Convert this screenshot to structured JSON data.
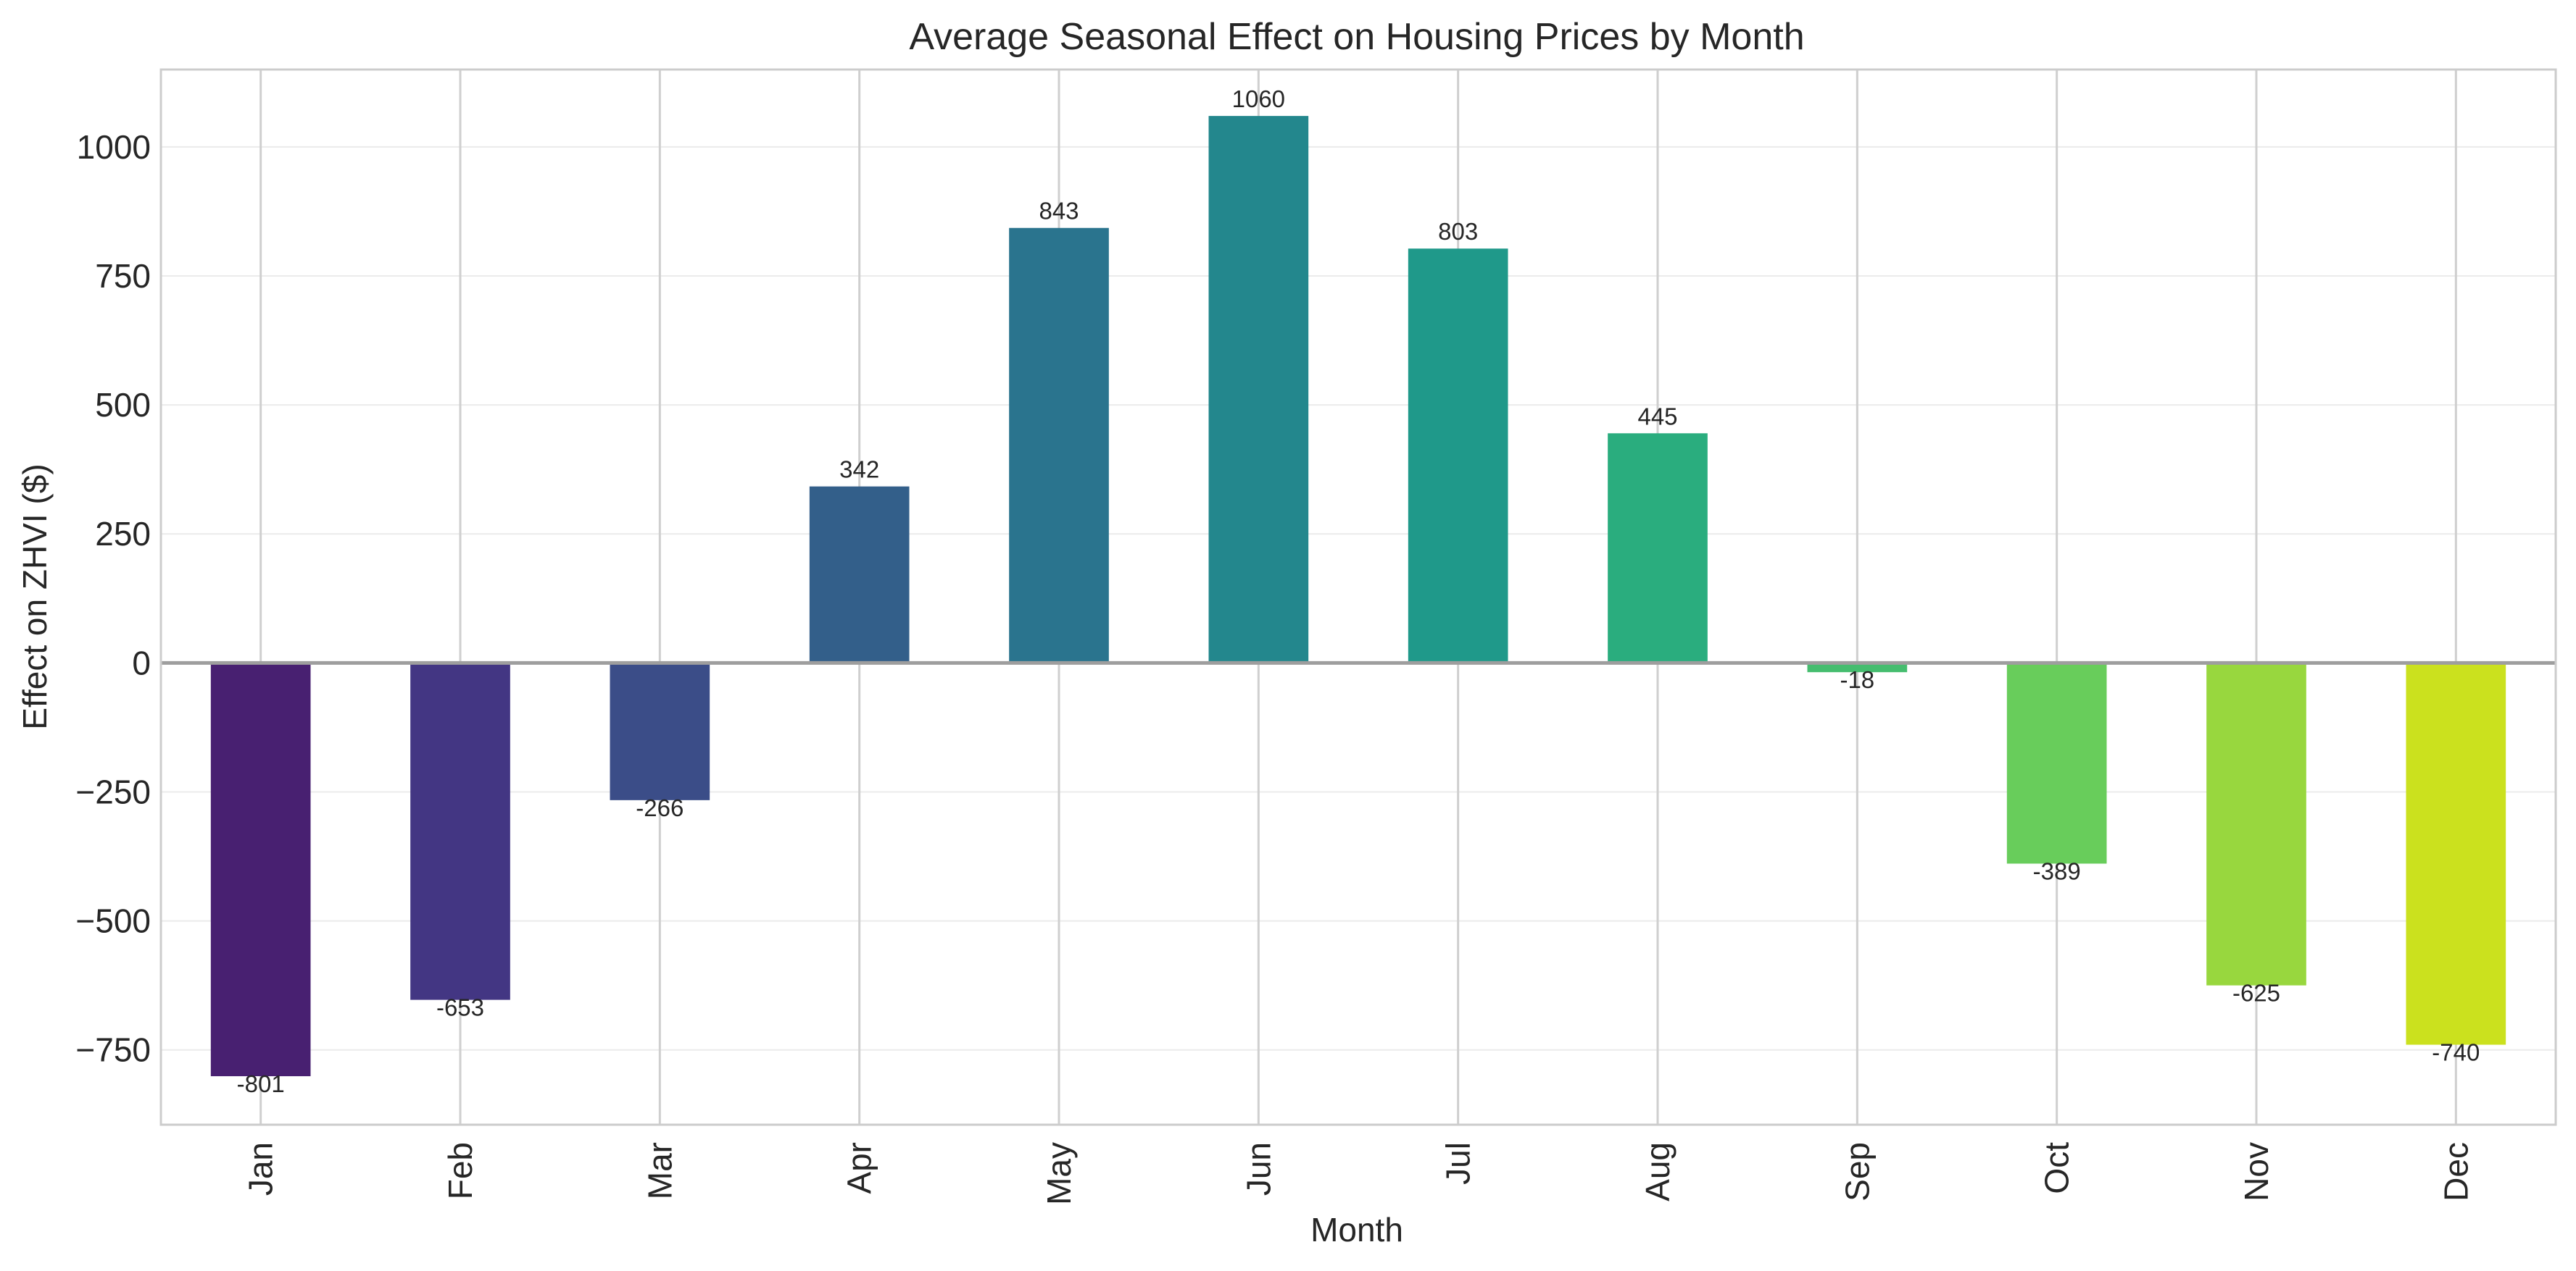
{
  "chart_data": {
    "type": "bar",
    "title": "Average Seasonal Effect on Housing Prices by Month",
    "xlabel": "Month",
    "ylabel": "Effect on ZHVI ($)",
    "categories": [
      "Jan",
      "Feb",
      "Mar",
      "Apr",
      "May",
      "Jun",
      "Jul",
      "Aug",
      "Sep",
      "Oct",
      "Nov",
      "Dec"
    ],
    "values": [
      -801,
      -653,
      -266,
      342,
      843,
      1060,
      803,
      445,
      -18,
      -389,
      -625,
      -740
    ],
    "value_labels": [
      "-801",
      "-653",
      "-266",
      "342",
      "843",
      "1060",
      "803",
      "445",
      "-18",
      "-389",
      "-625",
      "-740"
    ],
    "bar_colors": [
      "#482071",
      "#433683",
      "#3b4d88",
      "#335f8a",
      "#2a748e",
      "#23878d",
      "#1f998a",
      "#2aad7e",
      "#45bd6f",
      "#68cd5b",
      "#98d73e",
      "#cbe11e"
    ],
    "yticks": [
      -750,
      -500,
      -250,
      0,
      250,
      500,
      750,
      1000
    ],
    "ytick_labels": [
      "−750",
      "−500",
      "−250",
      "0",
      "250",
      "500",
      "750",
      "1000"
    ],
    "ylim": [
      -895,
      1150
    ],
    "grid": true,
    "legend": "none"
  }
}
